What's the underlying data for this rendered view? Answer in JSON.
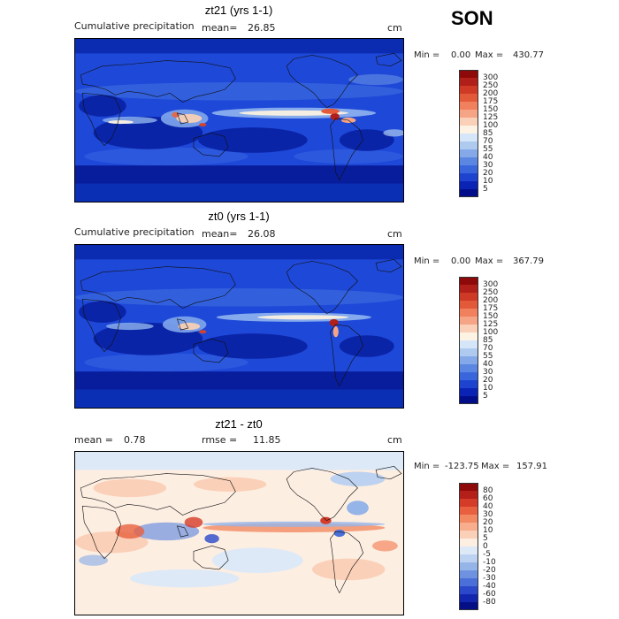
{
  "season": "SON",
  "panels": [
    {
      "title": "zt21 (yrs 1-1)",
      "left_label": "Cumulative precipitation",
      "mean_label": "mean=",
      "mean_value": "26.85",
      "unit": "cm",
      "min_label": "Min =",
      "min_value": "0.00",
      "max_label": "Max =",
      "max_value": "430.77",
      "colorbar": {
        "levels": [
          "300",
          "250",
          "200",
          "175",
          "150",
          "125",
          "100",
          "85",
          "70",
          "55",
          "40",
          "30",
          "20",
          "10",
          "5"
        ],
        "colors": [
          "#8e0a0a",
          "#b01f1a",
          "#cf3a26",
          "#e35a3a",
          "#f0805e",
          "#f5a585",
          "#fad0b8",
          "#fdf3e4",
          "#d4e6f7",
          "#aecaef",
          "#84a8e8",
          "#5b86e2",
          "#3a66dc",
          "#1d43cf",
          "#0a23b5",
          "#020d8a"
        ]
      }
    },
    {
      "title": "zt0 (yrs 1-1)",
      "left_label": "Cumulative precipitation",
      "mean_label": "mean=",
      "mean_value": "26.08",
      "unit": "cm",
      "min_label": "Min =",
      "min_value": "0.00",
      "max_label": "Max =",
      "max_value": "367.79",
      "colorbar": {
        "levels": [
          "300",
          "250",
          "200",
          "175",
          "150",
          "125",
          "100",
          "85",
          "70",
          "55",
          "40",
          "30",
          "20",
          "10",
          "5"
        ],
        "colors": [
          "#8e0a0a",
          "#b01f1a",
          "#cf3a26",
          "#e35a3a",
          "#f0805e",
          "#f5a585",
          "#fad0b8",
          "#fdf3e4",
          "#d4e6f7",
          "#aecaef",
          "#84a8e8",
          "#5b86e2",
          "#3a66dc",
          "#1d43cf",
          "#0a23b5",
          "#020d8a"
        ]
      }
    },
    {
      "title": "zt21 - zt0",
      "mean_label": "mean =",
      "mean_value": "0.78",
      "rmse_label": "rmse =",
      "rmse_value": "11.85",
      "unit": "cm",
      "min_label": "Min =",
      "min_value": "-123.75",
      "max_label": "Max =",
      "max_value": "157.91",
      "colorbar": {
        "levels": [
          "80",
          "60",
          "40",
          "30",
          "20",
          "10",
          "5",
          "0",
          "-5",
          "-10",
          "-20",
          "-30",
          "-40",
          "-60",
          "-80"
        ],
        "colors": [
          "#8e0a0a",
          "#b51f1a",
          "#d43b28",
          "#e8603f",
          "#f38963",
          "#f8ad8d",
          "#fbd0b8",
          "#fdeee2",
          "#dde9f7",
          "#bcd2f0",
          "#95b4e8",
          "#6e92e0",
          "#4a6fd8",
          "#2a48c9",
          "#1226ad",
          "#040f85"
        ]
      }
    }
  ]
}
